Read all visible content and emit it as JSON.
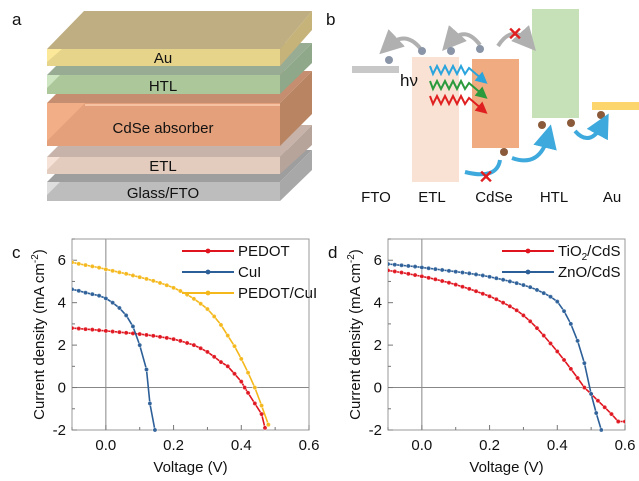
{
  "panel_a": {
    "label": "a",
    "layers": [
      {
        "name": "Au",
        "color": "#e6d48a"
      },
      {
        "name": "HTL",
        "color": "#acc79a"
      },
      {
        "name": "CdSe absorber",
        "color": "#e4a07a"
      },
      {
        "name": "ETL",
        "color": "#e3cbbd"
      },
      {
        "name": "Glass/FTO",
        "color": "#bdbdbd"
      }
    ]
  },
  "panel_b": {
    "label": "b",
    "hv_label": "hν",
    "bottom_labels": [
      "FTO",
      "ETL",
      "CdSe",
      "HTL",
      "Au"
    ],
    "colors": {
      "fto": "#c8c8c8",
      "etl": "#f9e2d4",
      "cdse": "#f0ac80",
      "htl": "#c6e0b8",
      "au": "#fcd56c",
      "arrow": "#3ea9dc",
      "blocked": "#e02020",
      "gray_arrow": "#b0b0b0",
      "light_blue": "#2aa4dc",
      "light_green": "#2a9a3c",
      "light_red": "#e02020"
    }
  },
  "chart_data": [
    {
      "panel_label": "c",
      "type": "line",
      "xlabel": "Voltage (V)",
      "ylabel": "Current density (mA cm⁻²)",
      "ylabel_main": "Current density (mA cm",
      "ylabel_sup": "-2",
      "ylabel_end": ")",
      "xlim": [
        -0.1,
        0.6
      ],
      "ylim": [
        -2,
        7
      ],
      "xticks": [
        0.0,
        0.2,
        0.4,
        0.6
      ],
      "xtick_labels": [
        "0.0",
        "0.2",
        "0.4",
        "0.6"
      ],
      "yticks": [
        -2,
        0,
        2,
        4,
        6
      ],
      "ytick_labels": [
        "-2",
        "0",
        "2",
        "4",
        "6"
      ],
      "legend_position": "top-right",
      "series": [
        {
          "name": "PEDOT",
          "color": "#e0141e",
          "x": [
            -0.1,
            -0.08,
            -0.06,
            -0.04,
            -0.02,
            0,
            0.02,
            0.04,
            0.06,
            0.08,
            0.1,
            0.12,
            0.14,
            0.16,
            0.18,
            0.2,
            0.22,
            0.24,
            0.26,
            0.28,
            0.3,
            0.32,
            0.34,
            0.36,
            0.38,
            0.4,
            0.41,
            0.42,
            0.44,
            0.46,
            0.47
          ],
          "y": [
            2.8,
            2.78,
            2.75,
            2.73,
            2.7,
            2.67,
            2.64,
            2.61,
            2.58,
            2.55,
            2.52,
            2.48,
            2.44,
            2.39,
            2.34,
            2.28,
            2.2,
            2.1,
            2.0,
            1.85,
            1.68,
            1.45,
            1.2,
            1.0,
            0.65,
            0.28,
            0.0,
            -0.25,
            -0.75,
            -1.25,
            -1.9
          ]
        },
        {
          "name": "CuI",
          "color": "#2c5f98",
          "x": [
            -0.1,
            -0.08,
            -0.06,
            -0.04,
            -0.02,
            0,
            0.02,
            0.04,
            0.06,
            0.08,
            0.1,
            0.12,
            0.13,
            0.145
          ],
          "y": [
            4.63,
            4.56,
            4.47,
            4.4,
            4.33,
            4.2,
            4.0,
            3.75,
            3.4,
            2.88,
            2.0,
            0.85,
            -0.75,
            -2.0
          ]
        },
        {
          "name": "PEDOT/CuI",
          "color": "#f5b81a",
          "x": [
            -0.1,
            -0.08,
            -0.06,
            -0.04,
            -0.02,
            0,
            0.02,
            0.04,
            0.06,
            0.08,
            0.1,
            0.12,
            0.14,
            0.16,
            0.18,
            0.2,
            0.22,
            0.24,
            0.26,
            0.28,
            0.3,
            0.32,
            0.34,
            0.36,
            0.38,
            0.4,
            0.42,
            0.44,
            0.46,
            0.48
          ],
          "y": [
            5.9,
            5.83,
            5.77,
            5.71,
            5.65,
            5.57,
            5.5,
            5.43,
            5.36,
            5.28,
            5.2,
            5.12,
            5.03,
            4.93,
            4.82,
            4.7,
            4.55,
            4.38,
            4.18,
            3.95,
            3.7,
            3.35,
            2.95,
            2.45,
            1.95,
            1.35,
            0.7,
            0.0,
            -0.85,
            -1.75
          ]
        }
      ]
    },
    {
      "panel_label": "d",
      "type": "line",
      "xlabel": "Voltage (V)",
      "ylabel": "Current density (mA cm⁻²)",
      "ylabel_main": "Current density (mA cm",
      "ylabel_sup": "-2",
      "ylabel_end": ")",
      "xlim": [
        -0.1,
        0.6
      ],
      "ylim": [
        -2,
        7
      ],
      "xticks": [
        0.0,
        0.2,
        0.4,
        0.6
      ],
      "xtick_labels": [
        "0.0",
        "0.2",
        "0.4",
        "0.6"
      ],
      "yticks": [
        -2,
        0,
        2,
        4,
        6
      ],
      "ytick_labels": [
        "-2",
        "0",
        "2",
        "4",
        "6"
      ],
      "legend_position": "top-right",
      "series": [
        {
          "name": "TiO2/CdS",
          "display_main": "TiO",
          "display_sub": "2",
          "display_end": "/CdS",
          "color": "#e0141e",
          "x": [
            -0.1,
            -0.08,
            -0.06,
            -0.04,
            -0.02,
            0,
            0.02,
            0.04,
            0.06,
            0.08,
            0.1,
            0.12,
            0.14,
            0.16,
            0.18,
            0.2,
            0.22,
            0.24,
            0.26,
            0.28,
            0.3,
            0.32,
            0.34,
            0.36,
            0.38,
            0.4,
            0.42,
            0.44,
            0.46,
            0.48,
            0.5,
            0.52,
            0.54,
            0.56,
            0.58,
            0.6
          ],
          "y": [
            5.52,
            5.47,
            5.42,
            5.36,
            5.3,
            5.24,
            5.17,
            5.1,
            5.02,
            4.94,
            4.85,
            4.75,
            4.65,
            4.54,
            4.42,
            4.3,
            4.16,
            4.0,
            3.83,
            3.64,
            3.4,
            3.12,
            2.8,
            2.45,
            2.08,
            1.7,
            1.3,
            0.88,
            0.45,
            0.0,
            -0.3,
            -0.62,
            -0.93,
            -1.25,
            -1.6,
            -1.6
          ]
        },
        {
          "name": "ZnO/CdS",
          "color": "#2c5f98",
          "x": [
            -0.1,
            -0.08,
            -0.06,
            -0.04,
            -0.02,
            0,
            0.02,
            0.04,
            0.06,
            0.08,
            0.1,
            0.12,
            0.14,
            0.16,
            0.18,
            0.2,
            0.22,
            0.24,
            0.26,
            0.28,
            0.3,
            0.32,
            0.34,
            0.36,
            0.38,
            0.4,
            0.42,
            0.44,
            0.46,
            0.48,
            0.5,
            0.515,
            0.53
          ],
          "y": [
            5.82,
            5.79,
            5.76,
            5.73,
            5.7,
            5.66,
            5.62,
            5.58,
            5.54,
            5.5,
            5.46,
            5.42,
            5.38,
            5.33,
            5.28,
            5.22,
            5.15,
            5.08,
            5.0,
            4.92,
            4.83,
            4.73,
            4.6,
            4.45,
            4.28,
            4.05,
            3.6,
            3.0,
            2.2,
            1.15,
            -0.3,
            -1.2,
            -2.0
          ]
        }
      ]
    }
  ]
}
